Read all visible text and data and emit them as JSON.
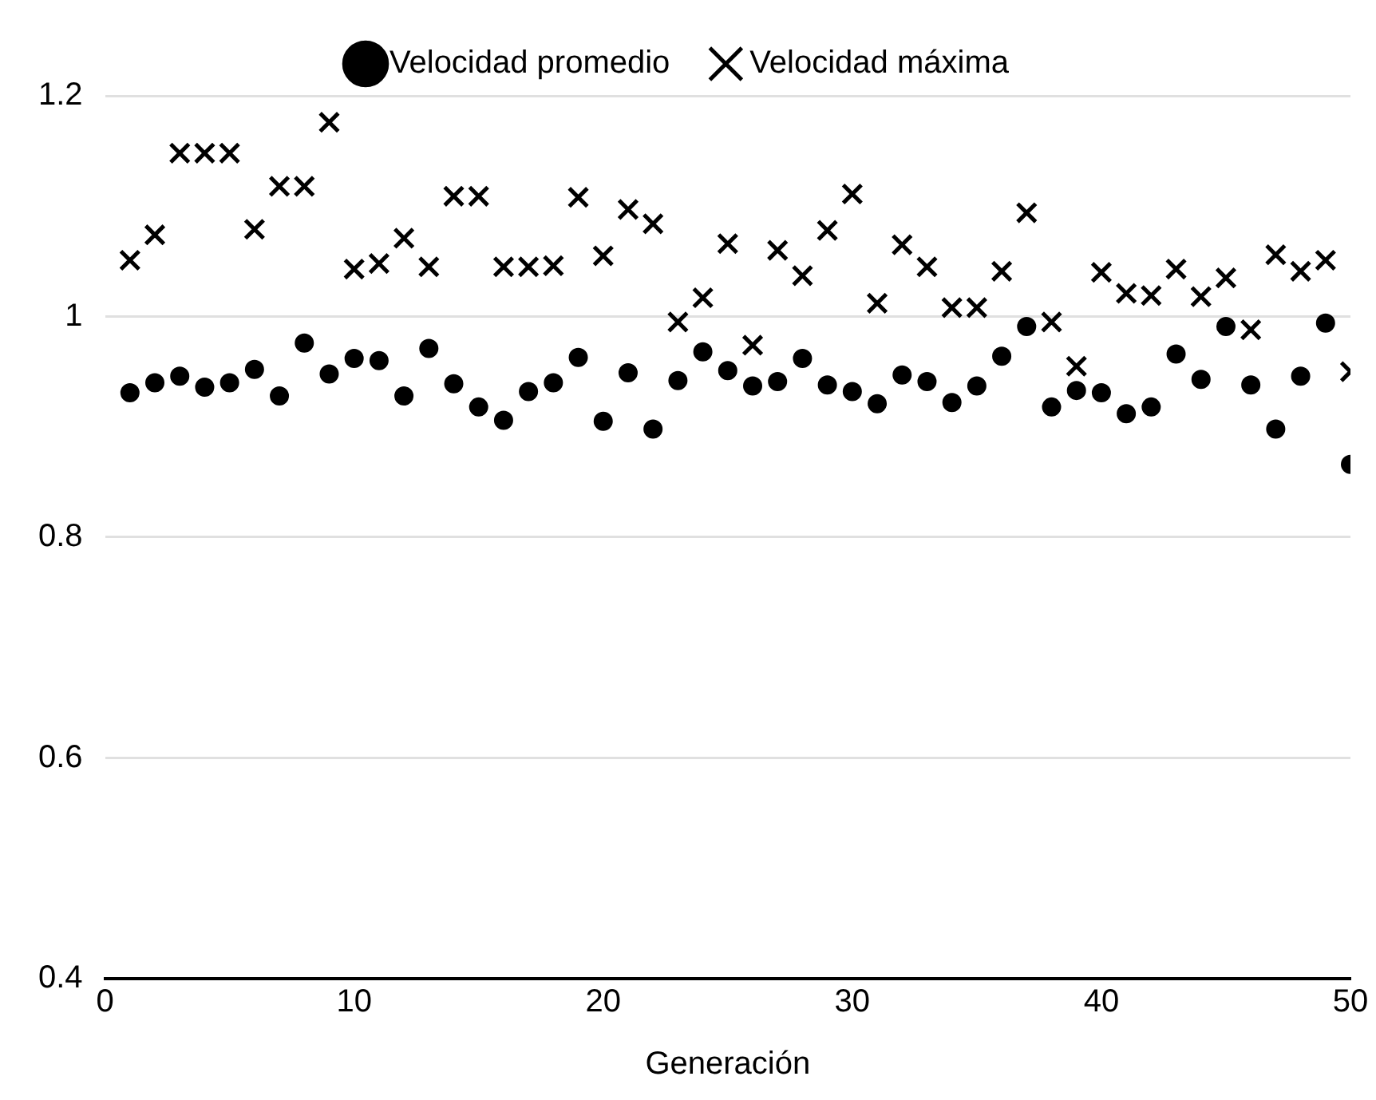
{
  "chart_data": {
    "type": "scatter",
    "xlabel": "Generación",
    "x": [
      1,
      2,
      3,
      4,
      5,
      6,
      7,
      8,
      9,
      10,
      11,
      12,
      13,
      14,
      15,
      16,
      17,
      18,
      19,
      20,
      21,
      22,
      23,
      24,
      25,
      26,
      27,
      28,
      29,
      30,
      31,
      32,
      33,
      34,
      35,
      36,
      37,
      38,
      39,
      40,
      41,
      42,
      43,
      44,
      45,
      46,
      47,
      48,
      49,
      50
    ],
    "series": [
      {
        "name": "Velocidad promedio",
        "color": "#000000",
        "marker": "circle",
        "values": [
          0.931,
          0.94,
          0.946,
          0.936,
          0.94,
          0.952,
          0.928,
          0.976,
          0.948,
          0.962,
          0.96,
          0.928,
          0.971,
          0.939,
          0.918,
          0.906,
          0.932,
          0.94,
          0.963,
          0.905,
          0.949,
          0.898,
          0.942,
          0.968,
          0.951,
          0.937,
          0.941,
          0.962,
          0.938,
          0.932,
          0.921,
          0.947,
          0.941,
          0.922,
          0.937,
          0.964,
          0.991,
          0.918,
          0.933,
          0.931,
          0.912,
          0.918,
          0.966,
          0.943,
          0.991,
          0.938,
          0.898,
          0.946,
          0.994,
          0.866
        ]
      },
      {
        "name": "Velocidad máxima",
        "color": "#000000",
        "marker": "cross",
        "values": [
          1.051,
          1.074,
          1.148,
          1.148,
          1.148,
          1.079,
          1.118,
          1.118,
          1.176,
          1.043,
          1.048,
          1.071,
          1.045,
          1.109,
          1.109,
          1.045,
          1.045,
          1.046,
          1.108,
          1.055,
          1.097,
          1.084,
          0.995,
          1.017,
          1.066,
          0.974,
          1.06,
          1.037,
          1.078,
          1.111,
          1.012,
          1.065,
          1.045,
          1.008,
          1.008,
          1.041,
          1.094,
          0.995,
          0.955,
          1.04,
          1.021,
          1.019,
          1.043,
          1.018,
          1.035,
          0.988,
          1.056,
          1.041,
          1.051,
          0.95
        ]
      }
    ],
    "xlim": [
      0,
      50
    ],
    "xticks": [
      0,
      10,
      20,
      30,
      40,
      50
    ],
    "ylim": [
      0.4,
      1.2
    ],
    "yticks": [
      0.4,
      0.6,
      0.8,
      1,
      1.2
    ],
    "grid": "y",
    "legend": "top"
  }
}
